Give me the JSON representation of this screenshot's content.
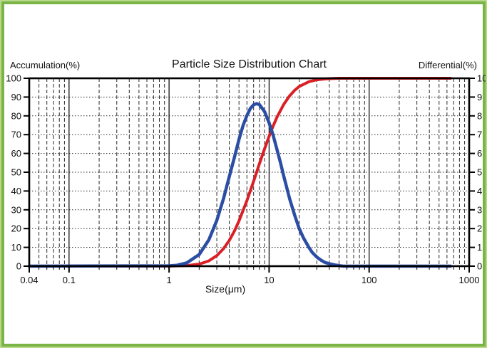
{
  "chart": {
    "title": "Particle Size Distribution Chart",
    "left_axis_title": "Accumulation(%)",
    "right_axis_title": "Differential(%)",
    "x_axis_title": "Size(μm)"
  },
  "colors": {
    "border_outer_green": "#b9d88c",
    "border_inner_green": "#79b445",
    "accumulation_red": "#d92027",
    "differential_blue": "#2b4ea4",
    "grid_black": "#2a2a2a",
    "background": "#ffffff"
  },
  "chart_data": {
    "type": "line",
    "title": "Particle Size Distribution Chart",
    "grid": "log-x dashed vertical, dotted horizontal",
    "legend_position": "none",
    "x_axis": {
      "label": "Size(μm)",
      "scale": "log",
      "min": 0.04,
      "max": 1000,
      "tick_values": [
        0.04,
        0.1,
        1,
        10,
        100,
        1000
      ],
      "tick_labels": [
        "0.04",
        "0.1",
        "1",
        "10",
        "100",
        "1000"
      ]
    },
    "y_left": {
      "label": "Accumulation(%)",
      "min": 0,
      "max": 100,
      "ticks": [
        100,
        90,
        80,
        70,
        60,
        50,
        40,
        30,
        20,
        10,
        0
      ]
    },
    "y_right": {
      "label": "Differential(%)",
      "min": 0,
      "max": 10,
      "ticks": [
        10,
        9,
        8,
        7,
        6,
        5,
        4,
        3,
        2,
        1,
        0
      ]
    },
    "series": [
      {
        "name": "accumulation",
        "axis": "left",
        "color": "#d92027",
        "stroke_width": 4,
        "points": [
          [
            0.04,
            0
          ],
          [
            1.0,
            0
          ],
          [
            1.5,
            0.3
          ],
          [
            2.0,
            1.1
          ],
          [
            2.5,
            2.8
          ],
          [
            3.0,
            5.6
          ],
          [
            3.5,
            9.3
          ],
          [
            4.0,
            13.7
          ],
          [
            4.5,
            18.7
          ],
          [
            5.0,
            24.1
          ],
          [
            6.0,
            34.9
          ],
          [
            7.0,
            45.2
          ],
          [
            7.5,
            50.0
          ],
          [
            8.0,
            54.5
          ],
          [
            9.0,
            62.4
          ],
          [
            10.0,
            69.1
          ],
          [
            11.0,
            74.7
          ],
          [
            12.0,
            79.3
          ],
          [
            14.0,
            86.1
          ],
          [
            16.0,
            90.6
          ],
          [
            18.0,
            93.6
          ],
          [
            20.0,
            95.6
          ],
          [
            25.0,
            98.2
          ],
          [
            30.0,
            99.2
          ],
          [
            35.0,
            99.6
          ],
          [
            40.0,
            99.8
          ],
          [
            50.0,
            100.0
          ],
          [
            650.0,
            100.0
          ]
        ]
      },
      {
        "name": "differential",
        "axis": "right",
        "color": "#2b4ea4",
        "stroke_width": 4.5,
        "points": [
          [
            0.04,
            0
          ],
          [
            1.0,
            0.02
          ],
          [
            1.2,
            0.05
          ],
          [
            1.5,
            0.17
          ],
          [
            2.0,
            0.62
          ],
          [
            2.5,
            1.4
          ],
          [
            3.0,
            2.44
          ],
          [
            3.5,
            3.6
          ],
          [
            4.0,
            4.77
          ],
          [
            4.5,
            5.8
          ],
          [
            5.0,
            6.75
          ],
          [
            5.5,
            7.5
          ],
          [
            6.0,
            8.02
          ],
          [
            6.5,
            8.4
          ],
          [
            7.0,
            8.59
          ],
          [
            7.5,
            8.65
          ],
          [
            8.0,
            8.6
          ],
          [
            9.0,
            8.23
          ],
          [
            10.0,
            7.63
          ],
          [
            11.0,
            6.95
          ],
          [
            12.0,
            6.2
          ],
          [
            13.0,
            5.5
          ],
          [
            14.0,
            4.8
          ],
          [
            15.0,
            4.19
          ],
          [
            16.0,
            3.6
          ],
          [
            18.0,
            2.72
          ],
          [
            20.0,
            2.0
          ],
          [
            22.0,
            1.51
          ],
          [
            25.0,
            1.0
          ],
          [
            27.0,
            0.73
          ],
          [
            30.0,
            0.48
          ],
          [
            33.0,
            0.32
          ],
          [
            36.0,
            0.2
          ],
          [
            40.0,
            0.13
          ],
          [
            45.0,
            0.07
          ],
          [
            50.0,
            0.03
          ],
          [
            55.0,
            0.0
          ],
          [
            650.0,
            0.0
          ]
        ]
      }
    ]
  }
}
